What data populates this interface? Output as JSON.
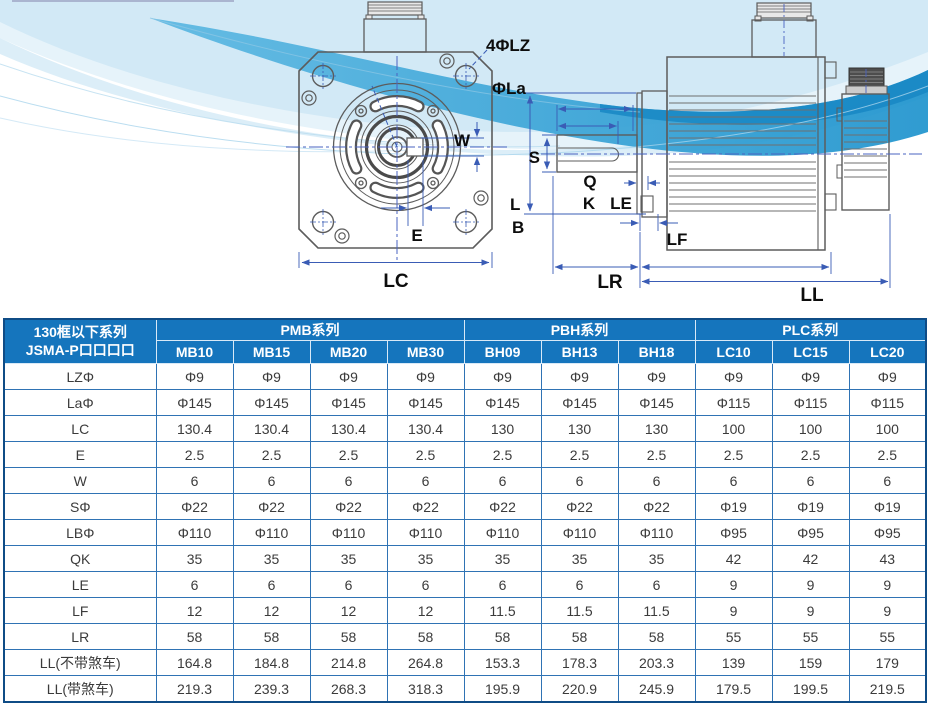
{
  "diagram": {
    "front": {
      "lz4": "4ΦLZ",
      "la": "ΦLa",
      "w": "W",
      "e": "E",
      "lc": "LC"
    },
    "side": {
      "s": "S",
      "q": "Q",
      "k": "K",
      "le": "LE",
      "l": "L",
      "b": "B",
      "lf": "LF",
      "lr": "LR",
      "ll": "LL"
    }
  },
  "table": {
    "corner": {
      "line1": "130框以下系列",
      "line2": "JSMA-P口口口口"
    },
    "groups": [
      {
        "label": "PMB系列",
        "models": [
          "MB10",
          "MB15",
          "MB20",
          "MB30"
        ]
      },
      {
        "label": "PBH系列",
        "models": [
          "BH09",
          "BH13",
          "BH18"
        ]
      },
      {
        "label": "PLC系列",
        "models": [
          "LC10",
          "LC15",
          "LC20"
        ]
      }
    ],
    "rows": [
      {
        "label": "LZΦ",
        "values": [
          "Φ9",
          "Φ9",
          "Φ9",
          "Φ9",
          "Φ9",
          "Φ9",
          "Φ9",
          "Φ9",
          "Φ9",
          "Φ9"
        ]
      },
      {
        "label": "LaΦ",
        "values": [
          "Φ145",
          "Φ145",
          "Φ145",
          "Φ145",
          "Φ145",
          "Φ145",
          "Φ145",
          "Φ115",
          "Φ115",
          "Φ115"
        ]
      },
      {
        "label": "LC",
        "values": [
          "130.4",
          "130.4",
          "130.4",
          "130.4",
          "130",
          "130",
          "130",
          "100",
          "100",
          "100"
        ]
      },
      {
        "label": "E",
        "values": [
          "2.5",
          "2.5",
          "2.5",
          "2.5",
          "2.5",
          "2.5",
          "2.5",
          "2.5",
          "2.5",
          "2.5"
        ]
      },
      {
        "label": "W",
        "values": [
          "6",
          "6",
          "6",
          "6",
          "6",
          "6",
          "6",
          "6",
          "6",
          "6"
        ]
      },
      {
        "label": "SΦ",
        "values": [
          "Φ22",
          "Φ22",
          "Φ22",
          "Φ22",
          "Φ22",
          "Φ22",
          "Φ22",
          "Φ19",
          "Φ19",
          "Φ19"
        ]
      },
      {
        "label": "LBΦ",
        "values": [
          "Φ110",
          "Φ110",
          "Φ110",
          "Φ110",
          "Φ110",
          "Φ110",
          "Φ110",
          "Φ95",
          "Φ95",
          "Φ95"
        ]
      },
      {
        "label": "QK",
        "values": [
          "35",
          "35",
          "35",
          "35",
          "35",
          "35",
          "35",
          "42",
          "42",
          "43"
        ]
      },
      {
        "label": "LE",
        "values": [
          "6",
          "6",
          "6",
          "6",
          "6",
          "6",
          "6",
          "9",
          "9",
          "9"
        ]
      },
      {
        "label": "LF",
        "values": [
          "12",
          "12",
          "12",
          "12",
          "11.5",
          "11.5",
          "11.5",
          "9",
          "9",
          "9"
        ]
      },
      {
        "label": "LR",
        "values": [
          "58",
          "58",
          "58",
          "58",
          "58",
          "58",
          "58",
          "55",
          "55",
          "55"
        ]
      },
      {
        "label": "LL(不带煞车)",
        "values": [
          "164.8",
          "184.8",
          "214.8",
          "264.8",
          "153.3",
          "178.3",
          "203.3",
          "139",
          "159",
          "179"
        ]
      },
      {
        "label": "LL(带煞车)",
        "values": [
          "219.3",
          "239.3",
          "268.3",
          "318.3",
          "195.9",
          "220.9",
          "245.9",
          "179.5",
          "199.5",
          "219.5"
        ]
      }
    ]
  },
  "colors": {
    "header_bg": "#1575bd",
    "table_border": "#2f73b4",
    "table_outer_border": "#0f4c86",
    "dimension_line": "#3a5cb5",
    "wave_blue": "#2196d4"
  }
}
